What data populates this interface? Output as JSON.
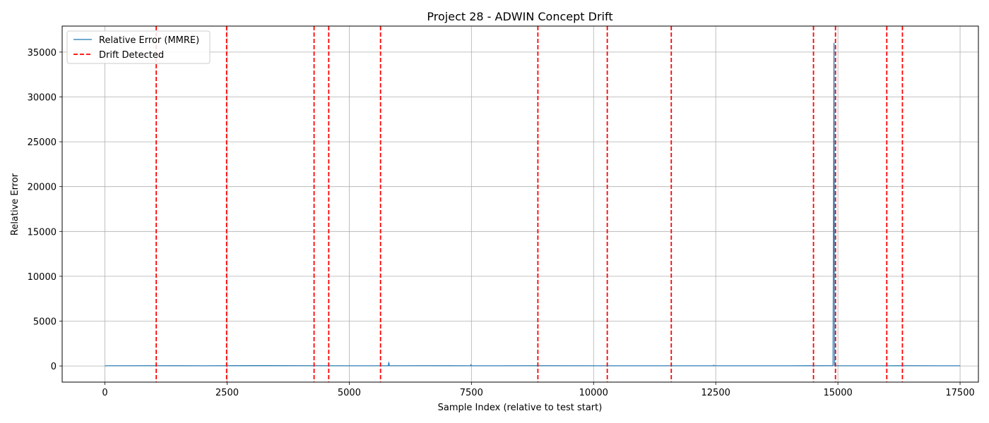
{
  "chart_data": {
    "type": "line",
    "title": "Project 28 - ADWIN Concept Drift",
    "xlabel": "Sample Index (relative to test start)",
    "ylabel": "Relative Error",
    "xlim": [
      -875,
      17875
    ],
    "ylim": [
      -1800,
      37900
    ],
    "xticks": [
      0,
      2500,
      5000,
      7500,
      10000,
      12500,
      15000,
      17500
    ],
    "yticks": [
      0,
      5000,
      10000,
      15000,
      20000,
      25000,
      30000,
      35000
    ],
    "grid": true,
    "legend_placement": "top-left",
    "series": [
      {
        "name": "Relative Error (MMRE)",
        "color": "#1f77b4",
        "style": "solid",
        "x": [
          0,
          1000,
          2000,
          3000,
          4000,
          5000,
          5800,
          5810,
          5820,
          6500,
          7480,
          7490,
          7500,
          8000,
          9000,
          10000,
          11000,
          12000,
          12450,
          12460,
          12470,
          13000,
          14000,
          14900,
          14920,
          14930,
          14940,
          15000,
          15500,
          16000,
          16500,
          17000,
          17500
        ],
        "y": [
          20,
          30,
          25,
          40,
          30,
          20,
          25,
          400,
          20,
          30,
          25,
          150,
          20,
          25,
          30,
          20,
          25,
          20,
          25,
          90,
          20,
          25,
          20,
          30,
          36000,
          25,
          20,
          25,
          20,
          25,
          30,
          20,
          25
        ]
      }
    ],
    "drift_lines": {
      "name": "Drift Detected",
      "color": "#ff0000",
      "style": "dashed",
      "x": [
        1050,
        2490,
        4280,
        4580,
        5640,
        8860,
        10280,
        11590,
        14500,
        14950,
        16000,
        16320
      ]
    }
  }
}
